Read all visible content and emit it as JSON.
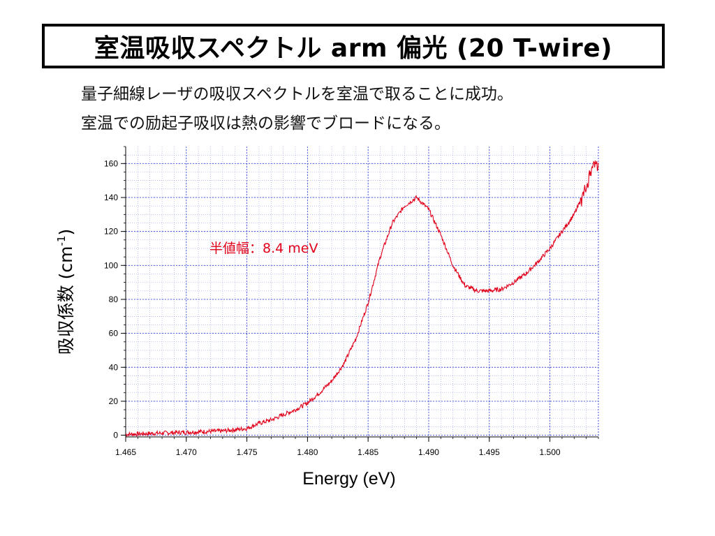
{
  "slide": {
    "title": "室温吸収スペクトル arm 偏光 (20 T-wire)",
    "line1": "量子細線レーザの吸収スペクトルを室温で取ることに成功。",
    "line2": "室温での励起子吸収は熱の影響でブロードになる。"
  },
  "chart_data": {
    "type": "line",
    "xlabel": "Energy (eV)",
    "ylabel_main": "吸収係数 (cm",
    "ylabel_sup": "-1",
    "ylabel_close": ")",
    "xlim": [
      1.465,
      1.504
    ],
    "ylim": [
      -1,
      170
    ],
    "x_ticks": [
      "1.465",
      "1.470",
      "1.475",
      "1.480",
      "1.485",
      "1.490",
      "1.495",
      "1.500"
    ],
    "y_ticks": [
      "0",
      "20",
      "40",
      "60",
      "80",
      "100",
      "120",
      "140",
      "160"
    ],
    "grid": true,
    "annotation": "半値幅：8.4 meV",
    "colors": {
      "line": "#e0001a",
      "grid": "#3f4fd6",
      "annotation": "#e0001a",
      "axis": "#000000"
    },
    "series": [
      {
        "x": [
          1.465,
          1.467,
          1.469,
          1.471,
          1.473,
          1.475,
          1.476,
          1.477,
          1.478,
          1.479,
          1.48,
          1.481,
          1.482,
          1.483,
          1.484,
          1.485,
          1.486,
          1.487,
          1.488,
          1.489,
          1.49,
          1.491,
          1.492,
          1.493,
          1.494,
          1.495,
          1.496,
          1.497,
          1.498,
          1.499,
          1.5,
          1.501,
          1.502,
          1.503,
          1.5035,
          1.504
        ],
        "y": [
          0.5,
          1,
          1.5,
          2,
          2.5,
          4,
          7,
          9,
          12,
          15,
          19,
          25,
          32,
          42,
          57,
          78,
          105,
          125,
          135,
          140,
          133,
          118,
          100,
          88,
          85,
          85,
          86,
          90,
          95,
          102,
          110,
          120,
          130,
          145,
          160,
          158
        ]
      }
    ]
  }
}
